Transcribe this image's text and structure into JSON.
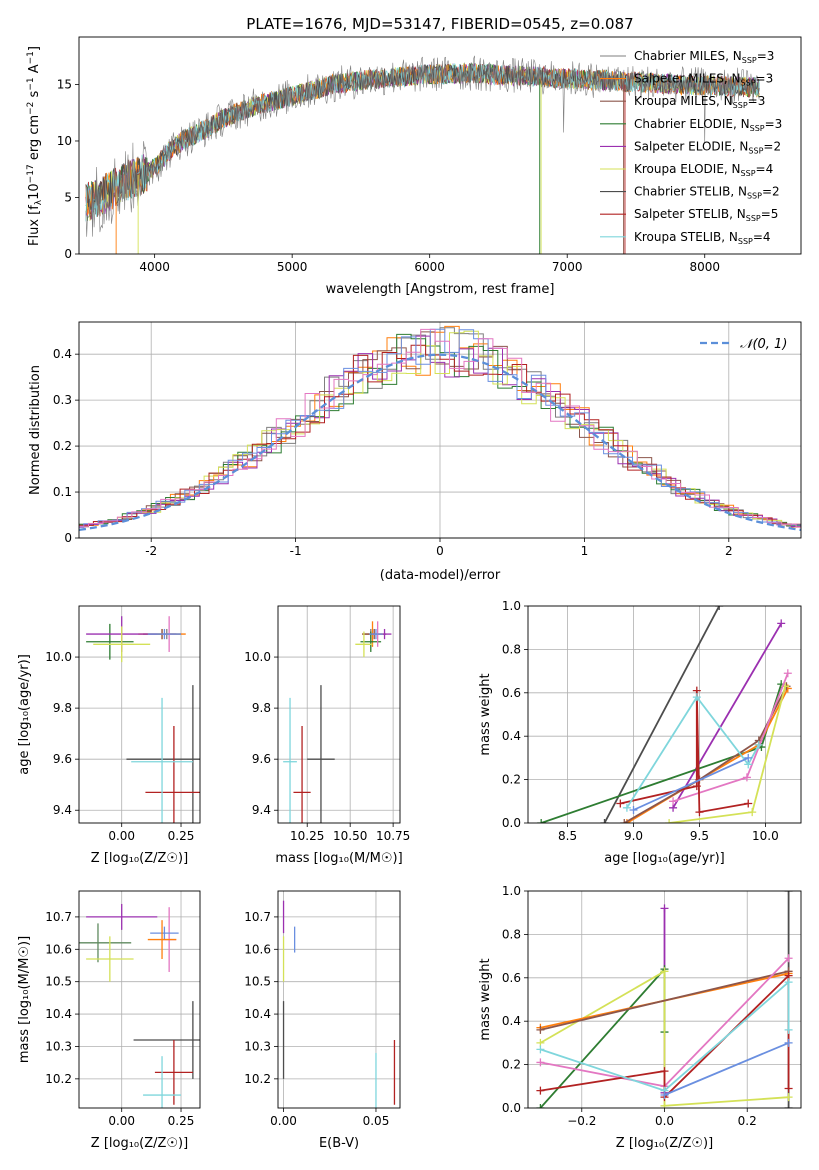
{
  "figure_title": "PLATE=1676, MJD=53147, FIBERID=0545, z=0.087",
  "colors": {
    "grid": "#b0b0b0",
    "series": [
      "#7f7f7f",
      "#ff7f0e",
      "#8c564b",
      "#2e7d32",
      "#9b30b0",
      "#d4e157",
      "#4d4d4d",
      "#b22222",
      "#7fd6dc"
    ],
    "normal_line": "#5b8fd9",
    "extra_hist": [
      "#6a8fe0",
      "#e377c2",
      "#5f8a5f"
    ]
  },
  "chart_data": [
    {
      "id": "spectrum",
      "type": "line",
      "xlabel": "wavelength [Angstrom, rest frame]",
      "ylabel": "Flux [f$_\\lambda$10$^{-17}$ erg cm$^{-2}$ s$^{-1}$ A$^{-1}$]",
      "ylabel_parts": [
        "Flux [f",
        "λ",
        "10",
        "−17",
        " erg cm",
        "−2",
        " s",
        "−1",
        " A",
        "−1",
        "]"
      ],
      "xlim": [
        3450,
        8700
      ],
      "ylim": [
        0,
        19.2
      ],
      "xticks": [
        4000,
        5000,
        6000,
        7000,
        8000
      ],
      "yticks": [
        0,
        5,
        10,
        15
      ],
      "continuum_x": [
        3500,
        3600,
        3700,
        3800,
        3900,
        4000,
        4100,
        4200,
        4300,
        4400,
        4500,
        4700,
        5000,
        5300,
        5600,
        6000,
        6300,
        6600,
        6900,
        7200,
        7500,
        7800,
        8100,
        8400
      ],
      "continuum_y": [
        4.5,
        5.0,
        5.8,
        6.5,
        7.0,
        7.6,
        9.0,
        10.0,
        10.6,
        11.2,
        12.0,
        13.0,
        14.0,
        15.0,
        15.5,
        15.9,
        16.0,
        15.8,
        15.6,
        15.4,
        15.2,
        15.0,
        14.9,
        14.7
      ],
      "legend": [
        {
          "label": "Chabrier MILES, N",
          "sub": "SSP",
          "n": "=3"
        },
        {
          "label": "Salpeter MILES, N",
          "sub": "SSP",
          "n": "=3"
        },
        {
          "label": "Kroupa MILES, N",
          "sub": "SSP",
          "n": "=3"
        },
        {
          "label": "Chabrier ELODIE, N",
          "sub": "SSP",
          "n": "=3"
        },
        {
          "label": "Salpeter ELODIE, N",
          "sub": "SSP",
          "n": "=2"
        },
        {
          "label": "Kroupa ELODIE, N",
          "sub": "SSP",
          "n": "=4"
        },
        {
          "label": "Chabrier STELIB, N",
          "sub": "SSP",
          "n": "=2"
        },
        {
          "label": "Salpeter STELIB, N",
          "sub": "SSP",
          "n": "=5"
        },
        {
          "label": "Kroupa STELIB, N",
          "sub": "SSP",
          "n": "=4"
        }
      ]
    },
    {
      "id": "residuals",
      "type": "histogram",
      "xlabel": "(data-model)/error",
      "ylabel": "Normed distribution",
      "xlim": [
        -2.5,
        2.5
      ],
      "ylim": [
        0,
        0.47
      ],
      "xticks": [
        -2,
        -1,
        0,
        1,
        2
      ],
      "yticks": [
        0.0,
        0.1,
        0.2,
        0.3,
        0.4
      ],
      "legend": "𝒩(0, 1)",
      "bin_width": 0.1,
      "n_histograms": 9
    },
    {
      "id": "age_vs_Z",
      "type": "scatter",
      "xlabel": "Z [log₁₀(Z/Z☉)]",
      "ylabel": "age  [log₁₀(age/yr)]",
      "xlim": [
        -0.18,
        0.33
      ],
      "ylim": [
        9.35,
        10.2
      ],
      "xticks": [
        0.0,
        0.25
      ],
      "xtick_labels": [
        "0.00",
        "0.25"
      ],
      "yticks": [
        9.4,
        9.6,
        9.8,
        10.0
      ],
      "ytick_labels": [
        "9.4",
        "9.6",
        "9.8",
        "10.0"
      ],
      "points": [
        {
          "x": 0.19,
          "y": 10.09,
          "ex": 0.04,
          "ey": 0.02,
          "c": "#7f7f7f"
        },
        {
          "x": 0.17,
          "y": 10.09,
          "ex": 0.1,
          "ey": 0.02,
          "c": "#ff7f0e"
        },
        {
          "x": 0.17,
          "y": 10.09,
          "ex": 0.08,
          "ey": 0.02,
          "c": "#8c564b"
        },
        {
          "x": -0.05,
          "y": 10.06,
          "ex": 0.1,
          "ey": 0.07,
          "c": "#2e7d32"
        },
        {
          "x": 0.0,
          "y": 10.09,
          "ex": 0.15,
          "ey": 0.07,
          "c": "#9b30b0"
        },
        {
          "x": 0.0,
          "y": 10.05,
          "ex": 0.12,
          "ey": 0.07,
          "c": "#d4e157"
        },
        {
          "x": 0.2,
          "y": 10.09,
          "ex": 0.03,
          "ey": 0.07,
          "c": "#e377c2"
        },
        {
          "x": 0.18,
          "y": 10.09,
          "ex": 0.07,
          "ey": 0.02,
          "c": "#6a8fe0"
        },
        {
          "x": 0.3,
          "y": 9.6,
          "ex": 0.28,
          "ey": 0.29,
          "c": "#4d4d4d"
        },
        {
          "x": 0.22,
          "y": 9.47,
          "ex": 0.12,
          "ey": 0.26,
          "c": "#b22222"
        },
        {
          "x": 0.17,
          "y": 9.59,
          "ex": 0.13,
          "ey": 0.25,
          "c": "#7fd6dc"
        }
      ]
    },
    {
      "id": "age_vs_mass",
      "type": "scatter",
      "xlabel": "mass [log₁₀(M/M☉)]",
      "ylabel": "",
      "xlim": [
        10.08,
        10.79
      ],
      "ylim": [
        9.35,
        10.2
      ],
      "xticks": [
        10.25,
        10.5,
        10.75
      ],
      "xtick_labels": [
        "10.25",
        "10.50",
        "10.75"
      ],
      "yticks": [
        9.4,
        9.6,
        9.8,
        10.0
      ],
      "ytick_labels": [
        "9.4",
        "9.6",
        "9.8",
        "10.0"
      ],
      "points": [
        {
          "x": 10.62,
          "y": 10.09,
          "ex": 0.04,
          "ey": 0.02,
          "c": "#7f7f7f"
        },
        {
          "x": 10.63,
          "y": 10.09,
          "ex": 0.06,
          "ey": 0.05,
          "c": "#ff7f0e"
        },
        {
          "x": 10.64,
          "y": 10.09,
          "ex": 0.07,
          "ey": 0.02,
          "c": "#8c564b"
        },
        {
          "x": 10.62,
          "y": 10.06,
          "ex": 0.06,
          "ey": 0.04,
          "c": "#2e7d32"
        },
        {
          "x": 10.7,
          "y": 10.09,
          "ex": 0.04,
          "ey": 0.02,
          "c": "#9b30b0"
        },
        {
          "x": 10.58,
          "y": 10.05,
          "ex": 0.05,
          "ey": 0.05,
          "c": "#d4e157"
        },
        {
          "x": 10.66,
          "y": 10.09,
          "ex": 0.03,
          "ey": 0.05,
          "c": "#e377c2"
        },
        {
          "x": 10.65,
          "y": 10.09,
          "ex": 0.04,
          "ey": 0.02,
          "c": "#6a8fe0"
        },
        {
          "x": 10.33,
          "y": 9.6,
          "ex": 0.08,
          "ey": 0.29,
          "c": "#4d4d4d"
        },
        {
          "x": 10.22,
          "y": 9.47,
          "ex": 0.05,
          "ey": 0.26,
          "c": "#b22222"
        },
        {
          "x": 10.15,
          "y": 9.59,
          "ex": 0.04,
          "ey": 0.25,
          "c": "#7fd6dc"
        }
      ]
    },
    {
      "id": "weight_vs_age",
      "type": "line",
      "xlabel": "age  [log₁₀(age/yr)]",
      "ylabel": "mass weight",
      "xlim": [
        8.2,
        10.27
      ],
      "ylim": [
        0,
        1.0
      ],
      "xticks": [
        8.5,
        9.0,
        9.5,
        10.0
      ],
      "xtick_labels": [
        "8.5",
        "9.0",
        "9.5",
        "10.0"
      ],
      "yticks": [
        0,
        0.2,
        0.4,
        0.6,
        0.8,
        1.0
      ],
      "ytick_labels": [
        "0.0",
        "0.2",
        "0.4",
        "0.6",
        "0.8",
        "1.0"
      ],
      "series": [
        {
          "c": "#4d4d4d",
          "x": [
            8.78,
            9.65
          ],
          "y": [
            0.0,
            1.0
          ]
        },
        {
          "c": "#9b30b0",
          "x": [
            9.3,
            10.12
          ],
          "y": [
            0.07,
            0.92
          ]
        },
        {
          "c": "#2e7d32",
          "x": [
            8.3,
            9.97,
            10.12
          ],
          "y": [
            0.0,
            0.35,
            0.64
          ]
        },
        {
          "c": "#ff7f0e",
          "x": [
            8.95,
            9.5,
            9.95,
            10.17
          ],
          "y": [
            0.0,
            0.2,
            0.36,
            0.62
          ]
        },
        {
          "c": "#8c564b",
          "x": [
            8.93,
            9.5,
            9.95,
            10.16
          ],
          "y": [
            0.0,
            0.2,
            0.38,
            0.63
          ]
        },
        {
          "c": "#d4e157",
          "x": [
            9.27,
            9.9,
            10.15
          ],
          "y": [
            0.0,
            0.05,
            0.63
          ]
        },
        {
          "c": "#e377c2",
          "x": [
            9.3,
            9.86,
            10.17
          ],
          "y": [
            0.1,
            0.21,
            0.69
          ]
        },
        {
          "c": "#b22222",
          "x": [
            8.9,
            9.48,
            9.48,
            9.5,
            9.87
          ],
          "y": [
            0.09,
            0.17,
            0.61,
            0.05,
            0.09
          ]
        },
        {
          "c": "#7fd6dc",
          "x": [
            8.95,
            9.48,
            9.87,
            9.95
          ],
          "y": [
            0.07,
            0.58,
            0.27,
            0.36
          ]
        },
        {
          "c": "#6a8fe0",
          "x": [
            9.0,
            9.87
          ],
          "y": [
            0.06,
            0.3
          ]
        }
      ]
    },
    {
      "id": "mass_vs_Z",
      "type": "scatter",
      "xlabel": "Z [log₁₀(Z/Z☉)]",
      "ylabel": "mass [log₁₀(M/M☉)]",
      "xlim": [
        -0.18,
        0.33
      ],
      "ylim": [
        10.11,
        10.78
      ],
      "xticks": [
        0.0,
        0.25
      ],
      "xtick_labels": [
        "0.00",
        "0.25"
      ],
      "yticks": [
        10.2,
        10.3,
        10.4,
        10.5,
        10.6,
        10.7
      ],
      "ytick_labels": [
        "10.2",
        "10.3",
        "10.4",
        "10.5",
        "10.6",
        "10.7"
      ],
      "points": [
        {
          "x": 0.0,
          "y": 10.7,
          "ex": 0.15,
          "ey": 0.04,
          "c": "#9b30b0"
        },
        {
          "x": 0.2,
          "y": 10.63,
          "ex": 0.03,
          "ey": 0.1,
          "c": "#e377c2"
        },
        {
          "x": 0.18,
          "y": 10.65,
          "ex": 0.06,
          "ey": 0.02,
          "c": "#6a8fe0"
        },
        {
          "x": 0.17,
          "y": 10.63,
          "ex": 0.06,
          "ey": 0.06,
          "c": "#ff7f0e"
        },
        {
          "x": -0.1,
          "y": 10.62,
          "ex": 0.14,
          "ey": 0.06,
          "c": "#5f8a5f"
        },
        {
          "x": -0.05,
          "y": 10.57,
          "ex": 0.1,
          "ey": 0.07,
          "c": "#d4e157"
        },
        {
          "x": 0.3,
          "y": 10.32,
          "ex": 0.25,
          "ey": 0.12,
          "c": "#4d4d4d"
        },
        {
          "x": 0.22,
          "y": 10.22,
          "ex": 0.08,
          "ey": 0.1,
          "c": "#b22222"
        },
        {
          "x": 0.17,
          "y": 10.15,
          "ex": 0.08,
          "ey": 0.12,
          "c": "#7fd6dc"
        }
      ]
    },
    {
      "id": "mass_vs_EBV",
      "type": "scatter",
      "xlabel": "E(B-V)",
      "ylabel": "",
      "xlim": [
        -0.003,
        0.063
      ],
      "ylim": [
        10.11,
        10.78
      ],
      "xticks": [
        0.0,
        0.05
      ],
      "xtick_labels": [
        "0.00",
        "0.05"
      ],
      "yticks": [
        10.2,
        10.3,
        10.4,
        10.5,
        10.6,
        10.7
      ],
      "ytick_labels": [
        "10.2",
        "10.3",
        "10.4",
        "10.5",
        "10.6",
        "10.7"
      ],
      "points": [
        {
          "x": 0.0,
          "y": 10.7,
          "ex": 0,
          "ey": 0.05,
          "c": "#9b30b0"
        },
        {
          "x": 0.006,
          "y": 10.63,
          "ex": 0,
          "ey": 0.04,
          "c": "#6a8fe0"
        },
        {
          "x": 0.0,
          "y": 10.57,
          "ex": 0,
          "ey": 0.07,
          "c": "#d4e157"
        },
        {
          "x": 0.0,
          "y": 10.32,
          "ex": 0,
          "ey": 0.12,
          "c": "#4d4d4d"
        },
        {
          "x": 0.06,
          "y": 10.22,
          "ex": 0,
          "ey": 0.1,
          "c": "#b22222"
        },
        {
          "x": 0.05,
          "y": 10.19,
          "ex": 0,
          "ey": 0.09,
          "c": "#7fd6dc"
        }
      ]
    },
    {
      "id": "weight_vs_Z",
      "type": "line",
      "xlabel": "Z [log₁₀(Z/Z☉)]",
      "ylabel": "mass weight",
      "xlim": [
        -0.33,
        0.33
      ],
      "ylim": [
        0,
        1.0
      ],
      "xticks": [
        -0.2,
        0.0,
        0.2
      ],
      "xtick_labels": [
        "−0.2",
        "0.0",
        "0.2"
      ],
      "yticks": [
        0,
        0.2,
        0.4,
        0.6,
        0.8,
        1.0
      ],
      "ytick_labels": [
        "0.0",
        "0.2",
        "0.4",
        "0.6",
        "0.8",
        "1.0"
      ],
      "series": [
        {
          "c": "#4d4d4d",
          "x": [
            0.3,
            0.3
          ],
          "y": [
            0.0,
            1.0
          ]
        },
        {
          "c": "#9b30b0",
          "x": [
            0.0,
            0.0
          ],
          "y": [
            0.07,
            0.92
          ]
        },
        {
          "c": "#2e7d32",
          "x": [
            -0.3,
            0.0,
            0.0
          ],
          "y": [
            0.0,
            0.64,
            0.35
          ]
        },
        {
          "c": "#d4e157",
          "x": [
            -0.3,
            0.0,
            0.0,
            0.3
          ],
          "y": [
            0.3,
            0.63,
            0.01,
            0.05
          ]
        },
        {
          "c": "#ff7f0e",
          "x": [
            -0.3,
            0.3
          ],
          "y": [
            0.37,
            0.62
          ]
        },
        {
          "c": "#8c564b",
          "x": [
            -0.3,
            0.3
          ],
          "y": [
            0.36,
            0.63
          ]
        },
        {
          "c": "#e377c2",
          "x": [
            -0.3,
            0.0,
            0.3
          ],
          "y": [
            0.21,
            0.1,
            0.69
          ]
        },
        {
          "c": "#b22222",
          "x": [
            -0.3,
            0.0,
            0.0,
            0.3,
            0.3
          ],
          "y": [
            0.08,
            0.17,
            0.05,
            0.61,
            0.09
          ]
        },
        {
          "c": "#7fd6dc",
          "x": [
            -0.3,
            0.0,
            0.3,
            0.3
          ],
          "y": [
            0.27,
            0.08,
            0.58,
            0.36
          ]
        },
        {
          "c": "#6a8fe0",
          "x": [
            0.0,
            0.3
          ],
          "y": [
            0.06,
            0.3
          ]
        }
      ]
    }
  ]
}
